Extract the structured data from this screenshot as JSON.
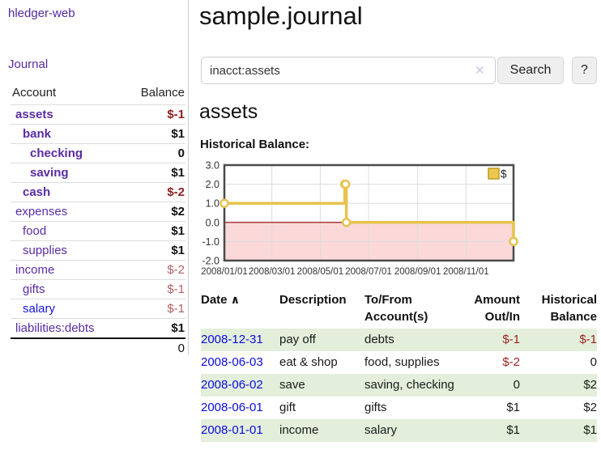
{
  "app": {
    "title": "hledger-web"
  },
  "nav": {
    "journal": "Journal"
  },
  "sidebar": {
    "headers": {
      "account": "Account",
      "balance": "Balance"
    },
    "rows": [
      {
        "account": "assets",
        "balance": "$-1"
      },
      {
        "account": "bank",
        "balance": "$1"
      },
      {
        "account": "checking",
        "balance": "0"
      },
      {
        "account": "saving",
        "balance": "$1"
      },
      {
        "account": "cash",
        "balance": "$-2"
      },
      {
        "account": "expenses",
        "balance": "$2"
      },
      {
        "account": "food",
        "balance": "$1"
      },
      {
        "account": "supplies",
        "balance": "$1"
      },
      {
        "account": "income",
        "balance": "$-2"
      },
      {
        "account": "gifts",
        "balance": "$-1"
      },
      {
        "account": "salary",
        "balance": "$-1"
      },
      {
        "account": "liabilities:debts",
        "balance": "$1"
      }
    ],
    "total": "0"
  },
  "main": {
    "title": "sample.journal",
    "search": {
      "value": "inacct:assets",
      "clear_icon": "✕",
      "button": "Search",
      "help": "?"
    },
    "account_title": "assets",
    "chart_label": "Historical Balance:"
  },
  "chart_data": {
    "type": "line",
    "title": "Historical Balance",
    "series": [
      {
        "name": "$",
        "points": [
          {
            "date": "2008-01-01",
            "value": 1
          },
          {
            "date": "2008-06-01",
            "value": 2
          },
          {
            "date": "2008-06-02",
            "value": 2
          },
          {
            "date": "2008-06-03",
            "value": 0
          },
          {
            "date": "2008-12-31",
            "value": -1
          }
        ]
      }
    ],
    "step": true,
    "ylim": [
      -2,
      3
    ],
    "yticks": [
      "3.0",
      "2.0",
      "1.0",
      "0.0",
      "-1.0",
      "-2.0"
    ],
    "xdomain": [
      "2008-01-01",
      "2008-12-31"
    ],
    "xticks": [
      "2008/01/01",
      "2008/03/01",
      "2008/05/01",
      "2008/07/01",
      "2008/09/01",
      "2008/11/01"
    ],
    "grid": true,
    "legend_position": "top-right",
    "line_color": "#e9c24d",
    "marker_fill": "#ffffff",
    "negative_fill": "#fbd9d9",
    "zero_line_color": "#8b0000"
  },
  "register": {
    "headers": {
      "date": "Date",
      "sort_icon": "∧",
      "description": "Description",
      "accounts": "To/From Account(s)",
      "amount": "Amount Out/In",
      "balance": "Historical Balance"
    },
    "rows": [
      {
        "date": "2008-12-31",
        "description": "pay off",
        "accounts": "debts",
        "amount": "$-1",
        "balance": "$-1"
      },
      {
        "date": "2008-06-03",
        "description": "eat & shop",
        "accounts": "food, supplies",
        "amount": "$-2",
        "balance": "0"
      },
      {
        "date": "2008-06-02",
        "description": "save",
        "accounts": "saving, checking",
        "amount": "0",
        "balance": "$2"
      },
      {
        "date": "2008-06-01",
        "description": "gift",
        "accounts": "gifts",
        "amount": "$1",
        "balance": "$2"
      },
      {
        "date": "2008-01-01",
        "description": "income",
        "accounts": "salary",
        "amount": "$1",
        "balance": "$1"
      }
    ]
  }
}
